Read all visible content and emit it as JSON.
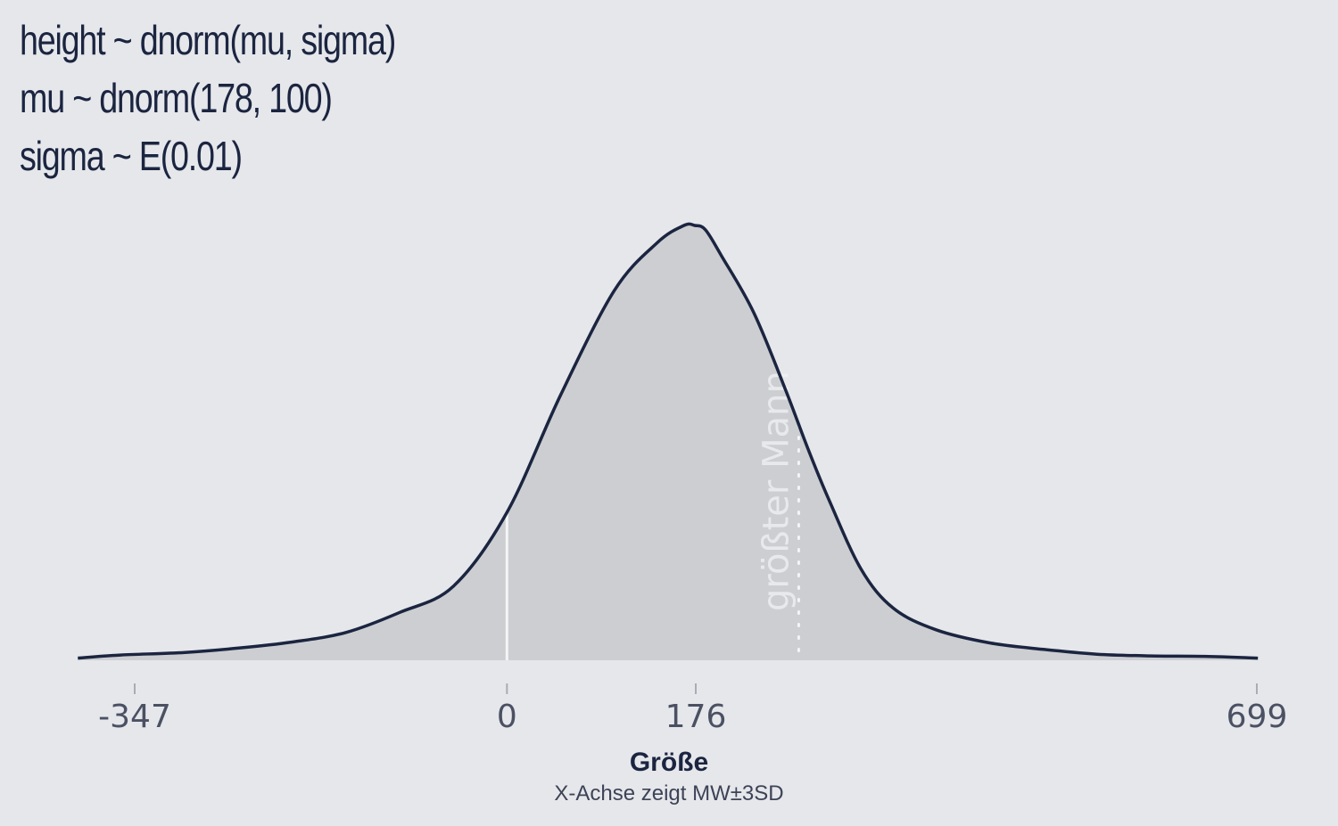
{
  "title_lines": [
    "height ~ dnorm(mu, sigma)",
    "mu ~ dnorm(178, 100)",
    "sigma ~ E(0.01)"
  ],
  "chart_data": {
    "type": "area",
    "title": "height ~ dnorm(mu, sigma)\nmu ~ dnorm(178, 100)\nsigma ~ E(0.01)",
    "xlabel": "Größe",
    "xlabel_sub": "X-Achse zeigt MW±3SD",
    "ylabel": "",
    "xlim": [
      -425,
      724
    ],
    "ylim": [
      0,
      1
    ],
    "grid": false,
    "y_axis_shown": false,
    "x_ticks": [
      -347,
      0,
      176,
      699
    ],
    "x_tick_labels": [
      "-347",
      "0",
      "176",
      "699"
    ],
    "reference_lines": [
      {
        "x": 0,
        "style": "solid",
        "color": "#f4f5f7",
        "label": ""
      },
      {
        "x": 272,
        "style": "dotted",
        "color": "#f4f5f7",
        "label": "größter Mann"
      }
    ],
    "series": [
      {
        "fill": "#cdced2",
        "line_color": "#1b2540",
        "x": [
          -400,
          -360,
          -300,
          -250,
          -200,
          -150,
          -100,
          -50,
          0,
          50,
          100,
          140,
          165,
          175,
          185,
          200,
          230,
          260,
          280,
          300,
          330,
          360,
          400,
          450,
          500,
          550,
          600,
          650,
          700
        ],
        "y": [
          0.005,
          0.012,
          0.018,
          0.028,
          0.042,
          0.064,
          0.11,
          0.17,
          0.34,
          0.61,
          0.85,
          0.96,
          1.0,
          1.0,
          0.99,
          0.93,
          0.8,
          0.62,
          0.49,
          0.37,
          0.21,
          0.12,
          0.07,
          0.04,
          0.025,
          0.014,
          0.01,
          0.009,
          0.005
        ]
      }
    ]
  }
}
